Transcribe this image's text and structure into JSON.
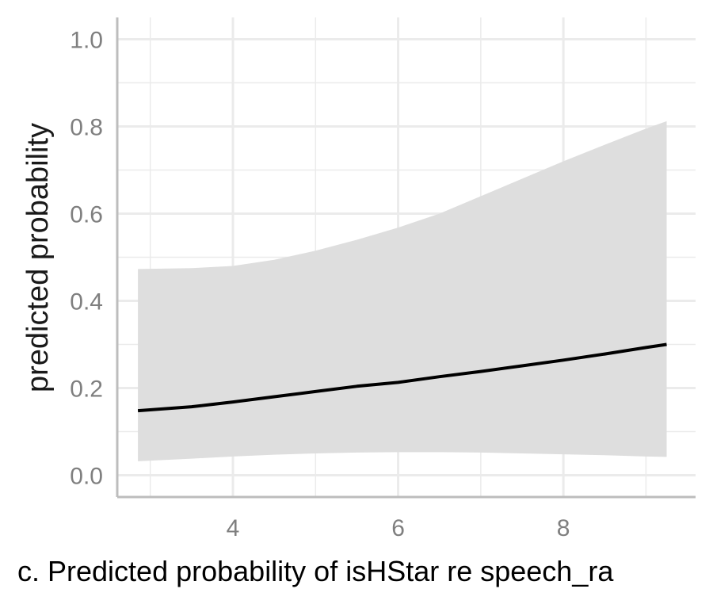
{
  "chart_data": {
    "type": "line",
    "caption": "c. Predicted probability of isHStar re speech_ra",
    "xlabel": "",
    "ylabel": "predicted probability",
    "xlim": [
      2.6,
      9.6
    ],
    "ylim": [
      -0.05,
      1.05
    ],
    "x_ticks": [
      4,
      6,
      8
    ],
    "x_tick_labels": [
      "4",
      "6",
      "8"
    ],
    "y_ticks": [
      0.0,
      0.2,
      0.4,
      0.6,
      0.8,
      1.0
    ],
    "y_tick_labels": [
      "0.0",
      "0.2",
      "0.4",
      "0.6",
      "0.8",
      "1.0"
    ],
    "grid": true,
    "series": [
      {
        "x": [
          2.85,
          3.5,
          4.0,
          4.5,
          5.0,
          5.5,
          6.0,
          6.5,
          7.0,
          7.5,
          8.0,
          8.5,
          9.0,
          9.25
        ],
        "y": [
          0.148,
          0.157,
          0.168,
          0.18,
          0.192,
          0.204,
          0.213,
          0.226,
          0.238,
          0.251,
          0.264,
          0.278,
          0.293,
          0.3
        ],
        "lower": [
          0.032,
          0.038,
          0.043,
          0.047,
          0.05,
          0.052,
          0.053,
          0.053,
          0.052,
          0.05,
          0.048,
          0.046,
          0.043,
          0.042
        ],
        "upper": [
          0.473,
          0.475,
          0.48,
          0.494,
          0.515,
          0.54,
          0.568,
          0.6,
          0.64,
          0.68,
          0.72,
          0.758,
          0.795,
          0.812
        ]
      }
    ],
    "colors": {
      "band": "#dedede",
      "line": "#000000",
      "grid": "#ebebeb",
      "axis": "#bdbdbd"
    }
  }
}
